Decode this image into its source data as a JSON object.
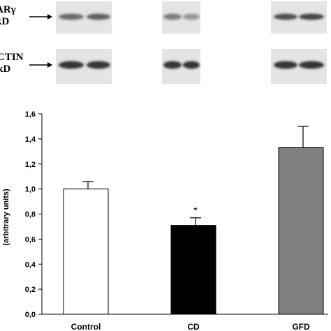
{
  "blot": {
    "rows": [
      {
        "protein": "PPARγ",
        "visible_line1": "ARγ",
        "visible_line2": "kD"
      },
      {
        "protein": "ACTIN",
        "visible_line1": "CTIN",
        "visible_line2": "kD"
      }
    ],
    "band_color": "#2a2a2a",
    "membrane_color": "#e4e4e4"
  },
  "chart_data": {
    "type": "bar",
    "categories": [
      "Control",
      "CD",
      "GFD"
    ],
    "values": [
      1.0,
      0.71,
      1.33
    ],
    "errors": [
      0.06,
      0.06,
      0.17
    ],
    "colors": [
      "#ffffff",
      "#000000",
      "#808080"
    ],
    "significance": [
      "",
      "*",
      ""
    ],
    "ylim": [
      0,
      1.6
    ],
    "yticks": [
      "0,0",
      "0,2",
      "0,4",
      "0,6",
      "0,8",
      "1,0",
      "1,2",
      "1,4",
      "1,6"
    ],
    "ylabel": "(arbitrary units)",
    "xlabel": "",
    "title": "",
    "grid": false
  }
}
